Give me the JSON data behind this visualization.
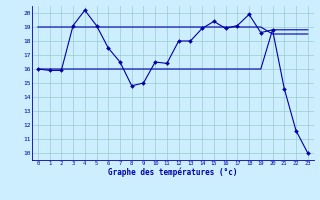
{
  "title": "Graphe des températures (°c)",
  "background_color": "#cceeff",
  "grid_color": "#99cccc",
  "line_color": "#0000aa",
  "xlim": [
    -0.5,
    23.5
  ],
  "ylim": [
    9.5,
    20.5
  ],
  "xticks": [
    0,
    1,
    2,
    3,
    4,
    5,
    6,
    7,
    8,
    9,
    10,
    11,
    12,
    13,
    14,
    15,
    16,
    17,
    18,
    19,
    20,
    21,
    22,
    23
  ],
  "yticks": [
    10,
    11,
    12,
    13,
    14,
    15,
    16,
    17,
    18,
    19,
    20
  ],
  "line1_x": [
    0,
    1,
    2,
    3,
    4,
    5,
    6,
    7,
    8,
    9,
    10,
    11,
    12,
    13,
    14,
    15,
    16,
    17,
    18,
    19,
    20,
    21,
    22,
    23
  ],
  "line1_y": [
    16.0,
    15.9,
    15.9,
    19.1,
    20.2,
    19.1,
    17.5,
    16.5,
    14.8,
    15.0,
    16.5,
    16.4,
    18.0,
    18.0,
    18.9,
    19.4,
    18.9,
    19.1,
    19.9,
    18.6,
    18.8,
    14.6,
    11.6,
    10.0
  ],
  "line2_x": [
    0,
    1,
    2,
    3,
    4,
    5,
    6,
    7,
    8,
    9,
    10,
    11,
    12,
    13,
    14,
    15,
    16,
    17,
    18,
    19,
    20,
    21,
    22,
    23
  ],
  "line2_y": [
    16.0,
    16.0,
    16.0,
    16.0,
    16.0,
    16.0,
    16.0,
    16.0,
    16.0,
    16.0,
    16.0,
    16.0,
    16.0,
    16.0,
    16.0,
    16.0,
    16.0,
    16.0,
    16.0,
    16.0,
    18.8,
    18.8,
    18.8,
    18.8
  ],
  "line3_x": [
    0,
    1,
    2,
    3,
    4,
    5,
    6,
    7,
    8,
    9,
    10,
    11,
    12,
    13,
    14,
    15,
    16,
    17,
    18,
    19,
    20,
    21,
    22,
    23
  ],
  "line3_y": [
    19.0,
    19.0,
    19.0,
    19.0,
    19.0,
    19.0,
    19.0,
    19.0,
    19.0,
    19.0,
    19.0,
    19.0,
    19.0,
    19.0,
    19.0,
    19.0,
    19.0,
    19.0,
    19.0,
    19.0,
    18.5,
    18.5,
    18.5,
    18.5
  ]
}
